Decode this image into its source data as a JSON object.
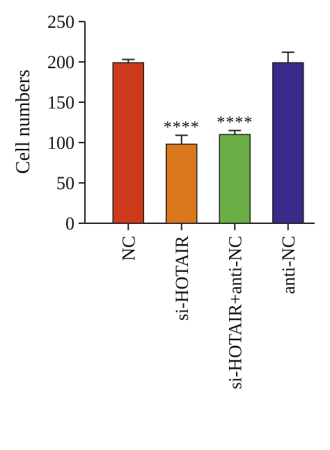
{
  "chart_data": {
    "type": "bar",
    "categories": [
      "NC",
      "si-HOTAIR",
      "si-HOTAIR+anti-NC",
      "anti-NC"
    ],
    "values": [
      199,
      98,
      110,
      199
    ],
    "errors": [
      4,
      11,
      5,
      13
    ],
    "colors": [
      "#cc3a1c",
      "#d9781c",
      "#6aae45",
      "#3a2a8a"
    ],
    "annotations": [
      "",
      "****",
      "****",
      ""
    ],
    "title": "",
    "xlabel": "",
    "ylabel": "Cell numbers",
    "ylim": [
      0,
      250
    ],
    "yticks": [
      0,
      50,
      100,
      150,
      200,
      250
    ],
    "grid": false
  }
}
